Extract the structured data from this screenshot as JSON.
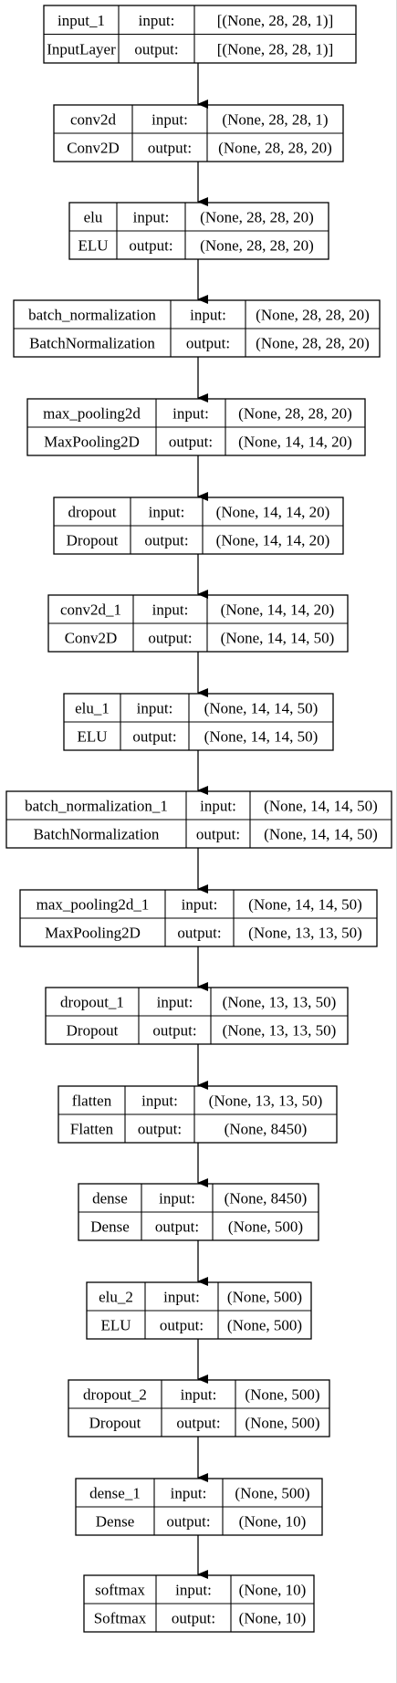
{
  "diagram": {
    "nodes": [
      {
        "name": "input_1",
        "type": "InputLayer",
        "input_label": "input:",
        "output_label": "output:",
        "input_shape": "[(None, 28, 28, 1)]",
        "output_shape": "[(None, 28, 28, 1)]"
      },
      {
        "name": "conv2d",
        "type": "Conv2D",
        "input_label": "input:",
        "output_label": "output:",
        "input_shape": "(None, 28, 28, 1)",
        "output_shape": "(None, 28, 28, 20)"
      },
      {
        "name": "elu",
        "type": "ELU",
        "input_label": "input:",
        "output_label": "output:",
        "input_shape": "(None, 28, 28, 20)",
        "output_shape": "(None, 28, 28, 20)"
      },
      {
        "name": "batch_normalization",
        "type": "BatchNormalization",
        "input_label": "input:",
        "output_label": "output:",
        "input_shape": "(None, 28, 28, 20)",
        "output_shape": "(None, 28, 28, 20)"
      },
      {
        "name": "max_pooling2d",
        "type": "MaxPooling2D",
        "input_label": "input:",
        "output_label": "output:",
        "input_shape": "(None, 28, 28, 20)",
        "output_shape": "(None, 14, 14, 20)"
      },
      {
        "name": "dropout",
        "type": "Dropout",
        "input_label": "input:",
        "output_label": "output:",
        "input_shape": "(None, 14, 14, 20)",
        "output_shape": "(None, 14, 14, 20)"
      },
      {
        "name": "conv2d_1",
        "type": "Conv2D",
        "input_label": "input:",
        "output_label": "output:",
        "input_shape": "(None, 14, 14, 20)",
        "output_shape": "(None, 14, 14, 50)"
      },
      {
        "name": "elu_1",
        "type": "ELU",
        "input_label": "input:",
        "output_label": "output:",
        "input_shape": "(None, 14, 14, 50)",
        "output_shape": "(None, 14, 14, 50)"
      },
      {
        "name": "batch_normalization_1",
        "type": "BatchNormalization",
        "input_label": "input:",
        "output_label": "output:",
        "input_shape": "(None, 14, 14, 50)",
        "output_shape": "(None, 14, 14, 50)"
      },
      {
        "name": "max_pooling2d_1",
        "type": "MaxPooling2D",
        "input_label": "input:",
        "output_label": "output:",
        "input_shape": "(None, 14, 14, 50)",
        "output_shape": "(None, 13, 13, 50)"
      },
      {
        "name": "dropout_1",
        "type": "Dropout",
        "input_label": "input:",
        "output_label": "output:",
        "input_shape": "(None, 13, 13, 50)",
        "output_shape": "(None, 13, 13, 50)"
      },
      {
        "name": "flatten",
        "type": "Flatten",
        "input_label": "input:",
        "output_label": "output:",
        "input_shape": "(None, 13, 13, 50)",
        "output_shape": "(None, 8450)"
      },
      {
        "name": "dense",
        "type": "Dense",
        "input_label": "input:",
        "output_label": "output:",
        "input_shape": "(None, 8450)",
        "output_shape": "(None, 500)"
      },
      {
        "name": "elu_2",
        "type": "ELU",
        "input_label": "input:",
        "output_label": "output:",
        "input_shape": "(None, 500)",
        "output_shape": "(None, 500)"
      },
      {
        "name": "dropout_2",
        "type": "Dropout",
        "input_label": "input:",
        "output_label": "output:",
        "input_shape": "(None, 500)",
        "output_shape": "(None, 500)"
      },
      {
        "name": "dense_1",
        "type": "Dense",
        "input_label": "input:",
        "output_label": "output:",
        "input_shape": "(None, 500)",
        "output_shape": "(None, 10)"
      },
      {
        "name": "softmax",
        "type": "Softmax",
        "input_label": "input:",
        "output_label": "output:",
        "input_shape": "(None, 10)",
        "output_shape": "(None, 10)"
      }
    ],
    "colors": {
      "stroke": "#000000",
      "background": "#ffffff"
    }
  }
}
